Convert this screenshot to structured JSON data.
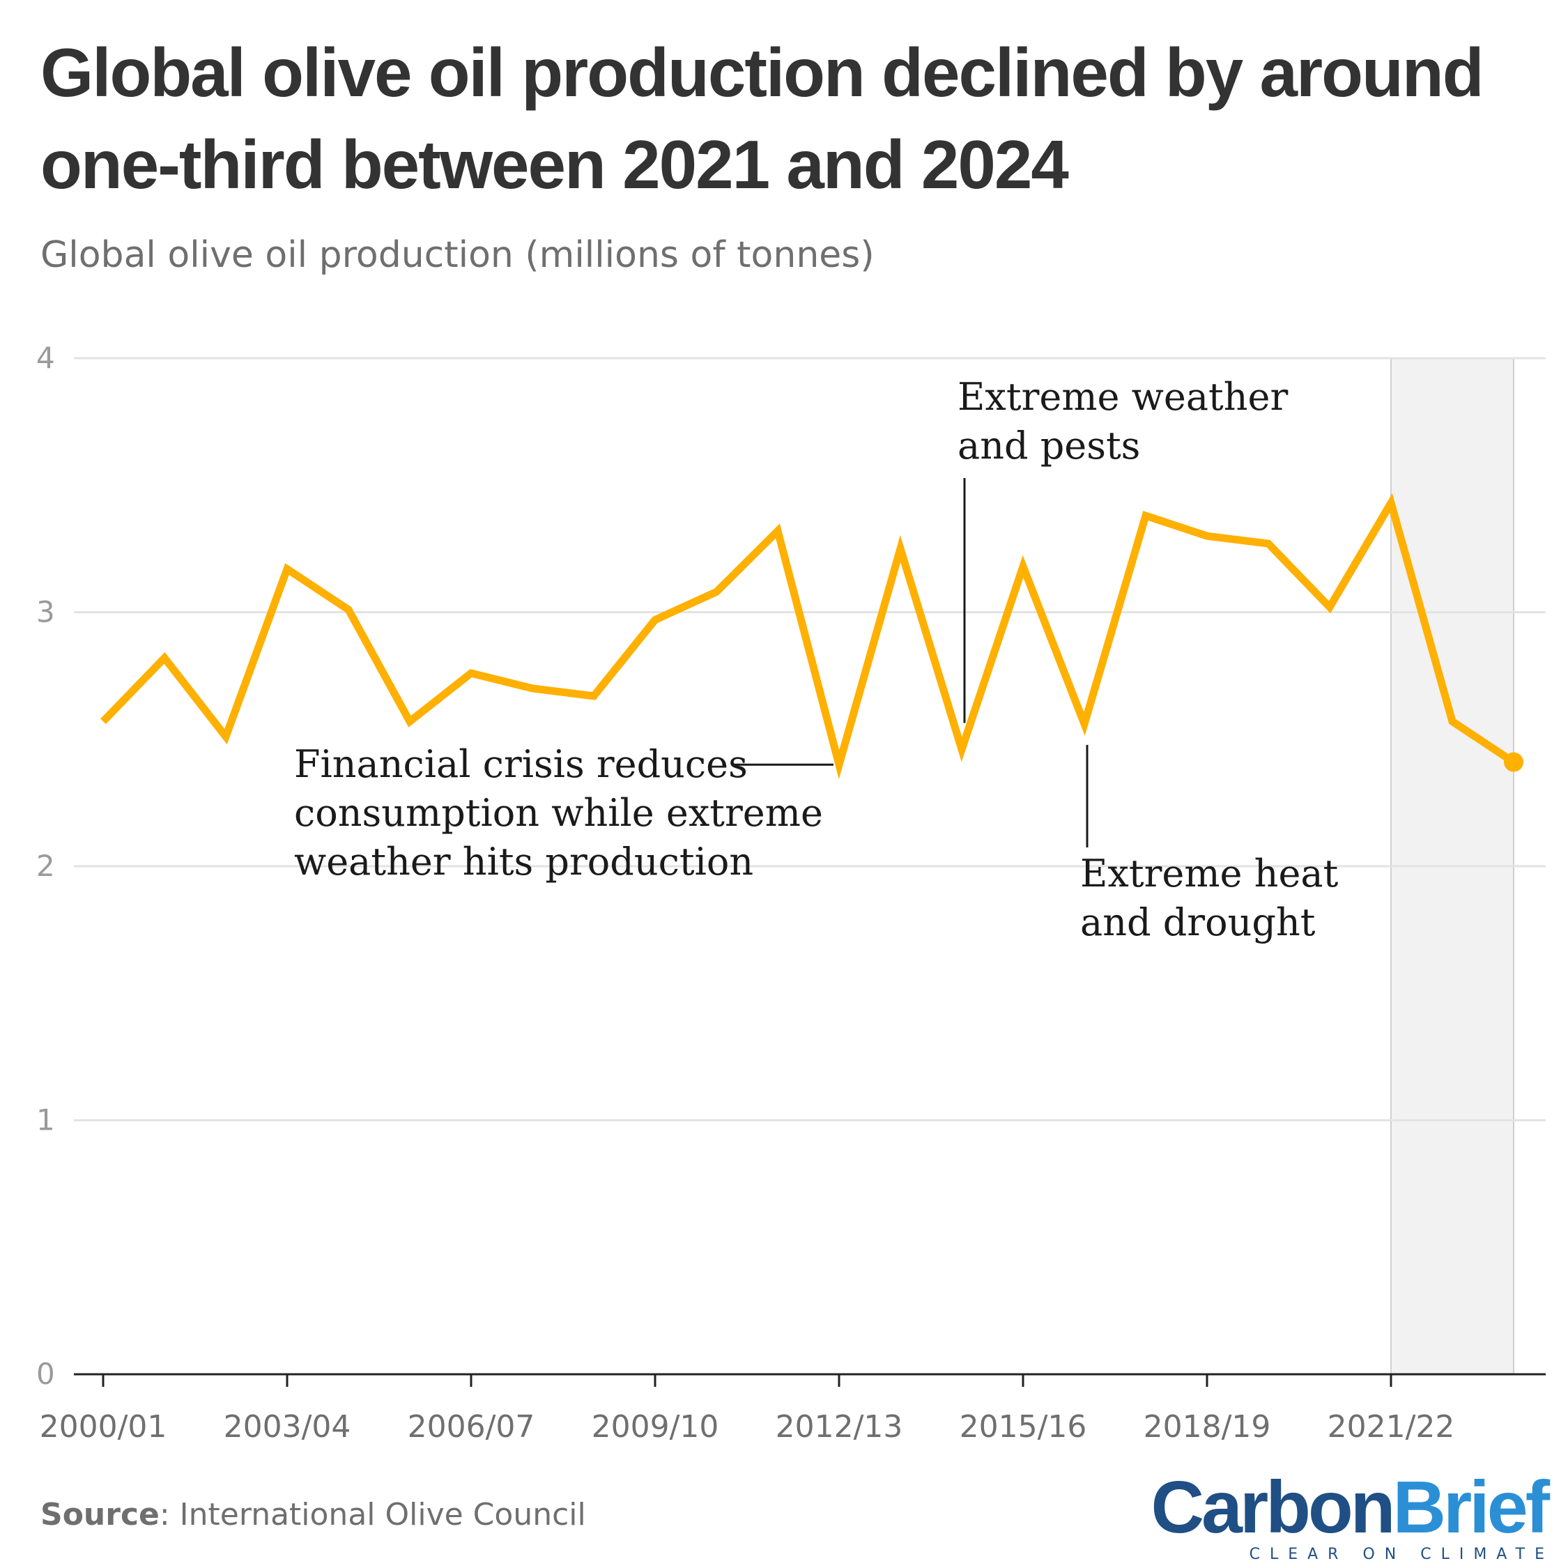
{
  "header": {
    "title": "Global olive oil production declined by around one-third between 2021 and 2024",
    "subtitle": "Global olive oil production (millions of tonnes)"
  },
  "footer": {
    "source_label": "Source",
    "source_text": ": International Olive Council",
    "logo_carbon": "Carbon",
    "logo_brief": "Brief",
    "logo_tagline": "CLEAR ON CLIMATE"
  },
  "colors": {
    "line": "#FFB000",
    "grid": "#e3e3e3",
    "axis": "#222222",
    "shade": "#f2f2f2",
    "shade_border": "#d0d0d0"
  },
  "chart_data": {
    "type": "line",
    "title": "Global olive oil production declined by around one-third between 2021 and 2024",
    "subtitle": "Global olive oil production (millions of tonnes)",
    "xlabel": "",
    "ylabel": "",
    "ylim": [
      0,
      4
    ],
    "yticks": [
      "0",
      "1",
      "2",
      "3",
      "4"
    ],
    "grid": true,
    "x": [
      "2000/01",
      "2001/02",
      "2002/03",
      "2003/04",
      "2004/05",
      "2005/06",
      "2006/07",
      "2007/08",
      "2008/09",
      "2009/10",
      "2010/11",
      "2011/12",
      "2012/13",
      "2013/14",
      "2014/15",
      "2015/16",
      "2016/17",
      "2017/18",
      "2018/19",
      "2019/20",
      "2020/21",
      "2021/22",
      "2022/23",
      "2023/24"
    ],
    "xtick_labels": [
      "2000/01",
      "2003/04",
      "2006/07",
      "2009/10",
      "2012/13",
      "2015/16",
      "2018/19",
      "2021/22"
    ],
    "series": [
      {
        "values": [
          2.57,
          2.82,
          2.51,
          3.17,
          3.01,
          2.57,
          2.76,
          2.7,
          2.67,
          2.97,
          3.08,
          3.32,
          2.4,
          3.25,
          2.46,
          3.18,
          2.56,
          3.38,
          3.3,
          3.27,
          3.02,
          3.43,
          2.57,
          2.41
        ]
      }
    ],
    "shaded_region": [
      "2021/22",
      "2023/24"
    ],
    "annotations": [
      {
        "lines": [
          "Financial crisis reduces",
          "consumption while extreme",
          "weather hits production"
        ],
        "target": "2012/13"
      },
      {
        "lines": [
          "Extreme weather",
          "and pests"
        ],
        "target": "2014/15"
      },
      {
        "lines": [
          "Extreme heat",
          "and drought"
        ],
        "target": "2016/17"
      }
    ]
  }
}
